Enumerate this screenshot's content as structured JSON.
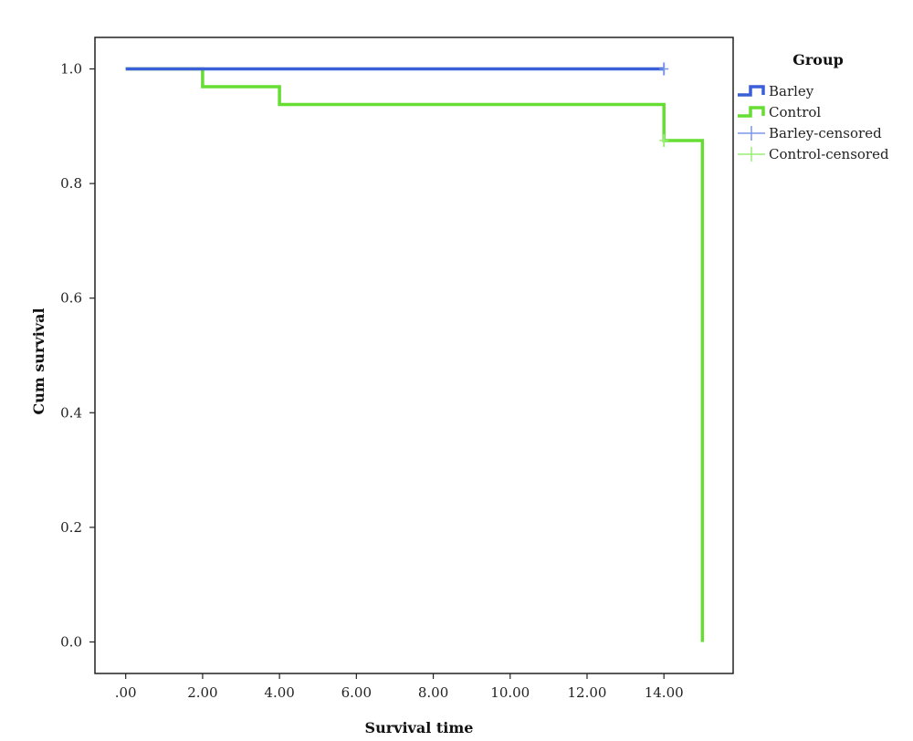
{
  "chart_data": {
    "type": "line",
    "subtype": "kaplan-meier step",
    "xlabel": "Survival time",
    "ylabel": "Cum survival",
    "xlim": [
      -0.8,
      15.8
    ],
    "ylim": [
      -0.055,
      1.055
    ],
    "x_ticks": [
      0,
      2,
      4,
      6,
      8,
      10,
      12,
      14
    ],
    "x_tick_labels": [
      ".00",
      "2.00",
      "4.00",
      "6.00",
      "8.00",
      "10.00",
      "12.00",
      "14.00"
    ],
    "y_ticks": [
      0.0,
      0.2,
      0.4,
      0.6,
      0.8,
      1.0
    ],
    "y_tick_labels": [
      "0.0",
      "0.2",
      "0.4",
      "0.6",
      "0.8",
      "1.0"
    ],
    "grid": false,
    "legend": {
      "title": "Group",
      "placement": "right",
      "entries": [
        "Barley",
        "Control",
        "Barley-censored",
        "Control-censored"
      ]
    },
    "series": [
      {
        "name": "Barley",
        "color": "#3b5fd9",
        "steps": [
          [
            0,
            1.0
          ],
          [
            14,
            1.0
          ]
        ],
        "censored": [
          [
            14,
            1.0
          ]
        ]
      },
      {
        "name": "Control",
        "color": "#66dd33",
        "steps": [
          [
            0,
            1.0
          ],
          [
            2,
            0.969
          ],
          [
            4,
            0.938
          ],
          [
            14,
            0.875
          ],
          [
            15,
            0.0
          ]
        ],
        "censored": [
          [
            14,
            0.875
          ]
        ]
      }
    ],
    "censored_colors": {
      "Barley-censored": "#7a96e6",
      "Control-censored": "#99ee77"
    }
  }
}
